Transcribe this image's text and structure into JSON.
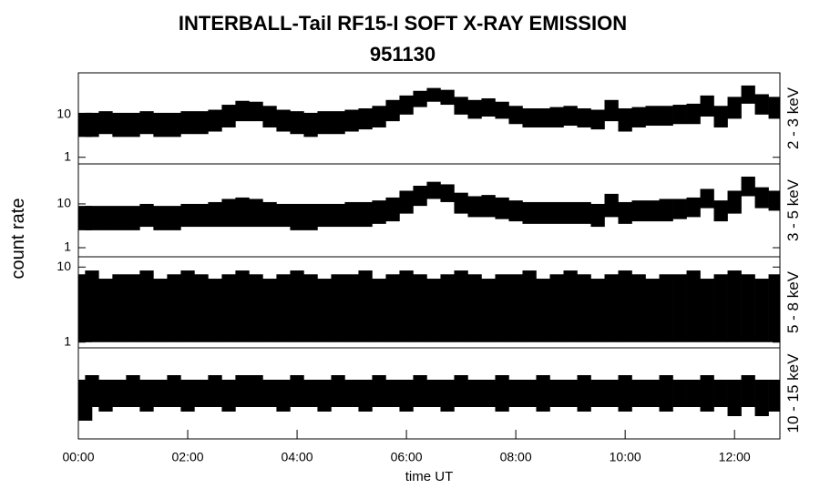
{
  "chart_data": {
    "type": "band",
    "title": "INTERBALL-Tail RF15-I SOFT X-RAY EMISSION",
    "subtitle": "951130",
    "ylabel": "count rate",
    "xlabel": "time UT",
    "xlim": [
      0,
      12.83
    ],
    "xticks": [
      {
        "value": 0,
        "label": "00:00"
      },
      {
        "value": 2,
        "label": "02:00"
      },
      {
        "value": 4,
        "label": "04:00"
      },
      {
        "value": 6,
        "label": "06:00"
      },
      {
        "value": 8,
        "label": "08:00"
      },
      {
        "value": 10,
        "label": "10:00"
      },
      {
        "value": 12,
        "label": "12:00"
      }
    ],
    "x": [
      0,
      0.25,
      0.5,
      0.75,
      1,
      1.25,
      1.5,
      1.75,
      2,
      2.25,
      2.5,
      2.75,
      3,
      3.25,
      3.5,
      3.75,
      4,
      4.25,
      4.5,
      4.75,
      5,
      5.25,
      5.5,
      5.75,
      6,
      6.25,
      6.5,
      6.75,
      7,
      7.25,
      7.5,
      7.75,
      8,
      8.25,
      8.5,
      8.75,
      9,
      9.25,
      9.5,
      9.75,
      10,
      10.25,
      10.5,
      10.75,
      11,
      11.25,
      11.5,
      11.75,
      12,
      12.25,
      12.5,
      12.75
    ],
    "color": "#000000",
    "panels": [
      {
        "label": "2 - 3 keV",
        "log": true,
        "ylim": [
          0.7,
          95
        ],
        "yticks": [
          1,
          10
        ],
        "upper": [
          11,
          11,
          12,
          11,
          11,
          12,
          11,
          11,
          12,
          12,
          13,
          17,
          21,
          20,
          16,
          13,
          12,
          11,
          12,
          12,
          13,
          14,
          16,
          22,
          28,
          36,
          42,
          38,
          26,
          22,
          24,
          20,
          16,
          14,
          14,
          15,
          16,
          14,
          13,
          22,
          14,
          15,
          16,
          16,
          17,
          18,
          28,
          16,
          26,
          48,
          30,
          26
        ],
        "lower": [
          3,
          3,
          3.5,
          3,
          3,
          3.5,
          3,
          3,
          3.5,
          3.5,
          4,
          5,
          7,
          7,
          5,
          4,
          3.5,
          3,
          3.5,
          3.5,
          4,
          4.5,
          5,
          7,
          10,
          15,
          20,
          17,
          10,
          8,
          9,
          8,
          6,
          5,
          5,
          5,
          5.5,
          5,
          4.5,
          7,
          4,
          5,
          5.5,
          5.5,
          6,
          6,
          9,
          5,
          8,
          18,
          10,
          8
        ]
      },
      {
        "label": "3 - 5 keV",
        "log": true,
        "ylim": [
          0.62,
          82
        ],
        "yticks": [
          1,
          10
        ],
        "upper": [
          9,
          9,
          9,
          9,
          9,
          10,
          9,
          9,
          10,
          10,
          11,
          13,
          14,
          13,
          11,
          10,
          10,
          10,
          10,
          10,
          11,
          11,
          12,
          14,
          20,
          26,
          32,
          28,
          18,
          15,
          16,
          14,
          12,
          11,
          11,
          11,
          11,
          11,
          10,
          17,
          11,
          12,
          12,
          13,
          13,
          14,
          22,
          12,
          20,
          42,
          24,
          20
        ],
        "lower": [
          2.5,
          2.5,
          2.5,
          2.5,
          2.5,
          3,
          2.5,
          2.5,
          3,
          3,
          3,
          3,
          3,
          3,
          3,
          3,
          2.5,
          2.5,
          3,
          3,
          3,
          3,
          3.5,
          4,
          6,
          9,
          13,
          11,
          6,
          5,
          5,
          4.5,
          4,
          3.5,
          3.5,
          3.5,
          3.5,
          3.5,
          3,
          5,
          3.5,
          4,
          4,
          4,
          4.5,
          5,
          8,
          4,
          6,
          15,
          8,
          7
        ]
      },
      {
        "label": "5 - 8 keV",
        "log": true,
        "ylim": [
          0.84,
          13.7
        ],
        "yticks": [
          1,
          10
        ],
        "upper": [
          8,
          9,
          7,
          8,
          8,
          9,
          7,
          8,
          9,
          8,
          7,
          8,
          9,
          8,
          7,
          8,
          9,
          8,
          7,
          8,
          8,
          9,
          7,
          8,
          9,
          8,
          7,
          8,
          9,
          8,
          7,
          8,
          8,
          9,
          7,
          8,
          9,
          8,
          7,
          8,
          9,
          8,
          7,
          8,
          8,
          9,
          7,
          8,
          9,
          8,
          7,
          8
        ],
        "lower": [
          1,
          1,
          1,
          1,
          1,
          1,
          1,
          1,
          1,
          1,
          1,
          1,
          1,
          1,
          1,
          1,
          1,
          1,
          1,
          1,
          1,
          1,
          1,
          1,
          1,
          1,
          1,
          1,
          1,
          1,
          1,
          1,
          1,
          1,
          1,
          1,
          1,
          1,
          1,
          1,
          1,
          1,
          1,
          1,
          1,
          1,
          1,
          1,
          1,
          1,
          1,
          1
        ]
      },
      {
        "label": "10 - 15 keV",
        "log": false,
        "ylim": [
          0,
          10
        ],
        "upper": [
          6.5,
          7,
          6.5,
          6.5,
          7,
          6.5,
          6.5,
          7,
          6.5,
          6.5,
          7,
          6.5,
          7,
          7,
          6.5,
          6.5,
          7,
          6.5,
          6.5,
          7,
          6.5,
          6.5,
          7,
          6.5,
          6.5,
          7,
          6.5,
          6.5,
          7,
          6.5,
          6.5,
          7,
          6.5,
          6.5,
          7,
          6.5,
          6.5,
          7,
          6.5,
          6.5,
          7,
          6.5,
          6.5,
          7,
          6.5,
          6.5,
          7,
          6.5,
          6.5,
          7,
          6.5,
          6.5
        ],
        "lower": [
          2,
          3.5,
          3,
          3.5,
          3.5,
          3,
          3.5,
          3.5,
          3,
          3.5,
          3.5,
          3,
          3.5,
          3.5,
          3.5,
          3,
          3.5,
          3.5,
          3,
          3.5,
          3.5,
          3,
          3.5,
          3.5,
          3,
          3.5,
          3.5,
          3,
          3.5,
          3.5,
          3.5,
          3,
          3.5,
          3.5,
          3,
          3.5,
          3.5,
          3,
          3.5,
          3.5,
          3,
          3.5,
          3.5,
          3,
          3.5,
          3.5,
          3,
          3.5,
          2.5,
          3.5,
          2.5,
          3
        ]
      }
    ]
  }
}
